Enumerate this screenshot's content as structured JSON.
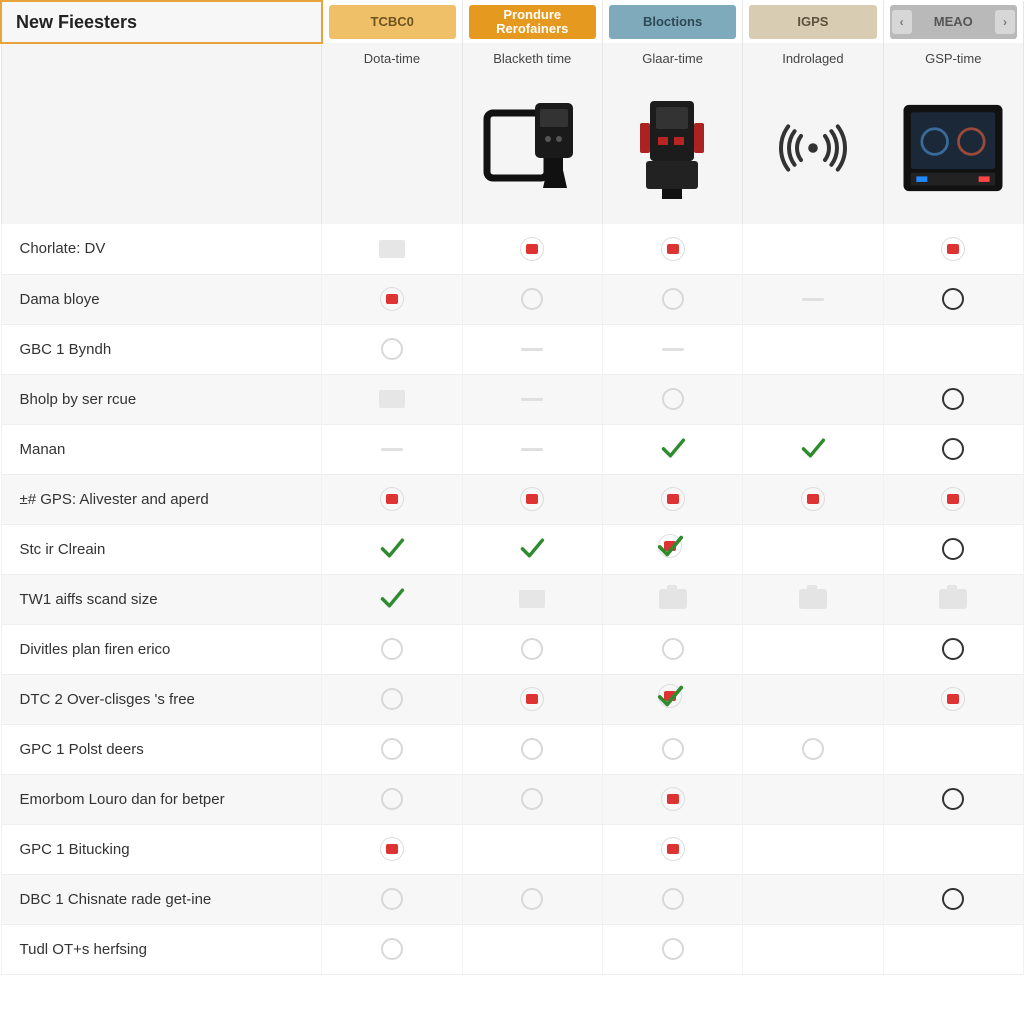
{
  "header": {
    "title": "New Fieesters",
    "columns": [
      {
        "label": "TCBC0",
        "bg": "#f0c069",
        "fg": "#6d5420"
      },
      {
        "label": "Prondure Rerofainers",
        "bg": "#e59a1f",
        "fg": "#ffffff"
      },
      {
        "label": "Bloctions",
        "bg": "#7eaabb",
        "fg": "#2d4a56"
      },
      {
        "label": "IGPS",
        "bg": "#d8cdb3",
        "fg": "#5c533f"
      },
      {
        "label": "MEAO",
        "bg": "#b9b9b9",
        "fg": "#555555",
        "has_nav": true
      }
    ],
    "subtitles": [
      "Dota-time",
      "Blacketh time",
      "Glaar-time",
      "Indrolaged",
      "GSP-time"
    ]
  },
  "rows": [
    {
      "label": "Chorlate: DV",
      "cells": [
        "faded-box",
        "red-dot",
        "red-dot",
        "",
        "red-dot"
      ]
    },
    {
      "label": "Dama bloye",
      "cells": [
        "red-dot",
        "circle-faded",
        "circle-faded",
        "faded-dash",
        "circle-empty"
      ]
    },
    {
      "label": "GBC 1 Byndh",
      "cells": [
        "circle-faded",
        "faded-dash",
        "faded-dash",
        "",
        ""
      ]
    },
    {
      "label": "Bholp by ser rcue",
      "cells": [
        "faded-box",
        "faded-dash",
        "circle-faded",
        "",
        "circle-empty"
      ]
    },
    {
      "label": "Manan",
      "cells": [
        "faded-dash",
        "faded-dash",
        "check",
        "check",
        "circle-empty"
      ]
    },
    {
      "label": "±# GPS: Alivester and aperd",
      "cells": [
        "red-dot",
        "red-dot",
        "red-dot",
        "red-dot",
        "red-dot"
      ]
    },
    {
      "label": "Stc ir Clreain",
      "cells": [
        "check",
        "check",
        "check-red",
        "",
        "circle-empty"
      ]
    },
    {
      "label": "TW1 aiffs scand size",
      "cells": [
        "check",
        "faded-box",
        "faded-camera",
        "faded-camera",
        "faded-camera"
      ]
    },
    {
      "label": "Divitles plan firen erico",
      "cells": [
        "circle-faded",
        "circle-faded",
        "circle-faded",
        "",
        "circle-empty"
      ]
    },
    {
      "label": "DTC 2 Over-clisges 's free",
      "cells": [
        "circle-faded",
        "red-dot",
        "check-red",
        "",
        "red-dot"
      ]
    },
    {
      "label": "GPC 1 Polst deers",
      "cells": [
        "circle-faded",
        "circle-faded",
        "circle-faded",
        "circle-faded",
        ""
      ]
    },
    {
      "label": "Emorbom Louro dan for betper",
      "cells": [
        "circle-faded",
        "circle-faded",
        "red-dot",
        "",
        "circle-empty"
      ]
    },
    {
      "label": "GPC 1 Bitucking",
      "cells": [
        "red-dot",
        "",
        "red-dot",
        "",
        ""
      ]
    },
    {
      "label": "DBC 1 Chisnate rade get-ine",
      "cells": [
        "circle-faded",
        "circle-faded",
        "circle-faded",
        "",
        "circle-empty"
      ]
    },
    {
      "label": "Tudl OT+s herfsing",
      "cells": [
        "circle-faded",
        "",
        "circle-faded",
        "",
        ""
      ]
    }
  ],
  "colors": {
    "check_stroke": "#2e8b2e",
    "red": "#d33333",
    "faded": "#dcdcdc",
    "empty_circle": "#333333"
  }
}
